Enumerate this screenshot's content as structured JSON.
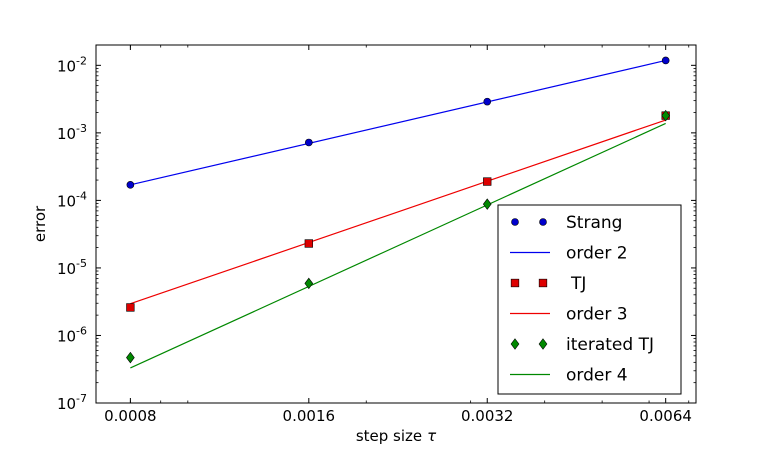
{
  "chart_data": {
    "type": "scatter",
    "title": "",
    "xlabel": "step size",
    "xlabel_symbol": "τ",
    "ylabel": "error",
    "x_scale": "log2",
    "y_scale": "log10",
    "xlim": [
      0.0007,
      0.0072
    ],
    "ylim": [
      1e-07,
      0.02
    ],
    "x_ticks": [
      {
        "value": 0.0008,
        "label": "0.0008"
      },
      {
        "value": 0.0016,
        "label": "0.0016"
      },
      {
        "value": 0.0032,
        "label": "0.0032"
      },
      {
        "value": 0.0064,
        "label": "0.0064"
      }
    ],
    "y_ticks": [
      {
        "exp": -7,
        "base": "10",
        "sup": "-7"
      },
      {
        "exp": -6,
        "base": "10",
        "sup": "-6"
      },
      {
        "exp": -5,
        "base": "10",
        "sup": "-5"
      },
      {
        "exp": -4,
        "base": "10",
        "sup": "-4"
      },
      {
        "exp": -3,
        "base": "10",
        "sup": "-3"
      },
      {
        "exp": -2,
        "base": "10",
        "sup": "-2"
      }
    ],
    "grid": false,
    "legend_position": "lower-right",
    "series": [
      {
        "name": "Strang",
        "kind": "markers",
        "marker": "circle",
        "color": "#0000cc",
        "x": [
          0.0008,
          0.0016,
          0.0032,
          0.0064
        ],
        "y": [
          0.00017,
          0.00072,
          0.0029,
          0.0118
        ]
      },
      {
        "name": "order 2",
        "kind": "line",
        "color": "#0000ee",
        "x": [
          0.0008,
          0.0064
        ],
        "y": [
          0.00017,
          0.0118
        ]
      },
      {
        "name": "TJ",
        "kind": "markers",
        "marker": "square",
        "color": "#dd0000",
        "x": [
          0.0008,
          0.0016,
          0.0032,
          0.0064
        ],
        "y": [
          2.6e-06,
          2.3e-05,
          0.00019,
          0.0018
        ]
      },
      {
        "name": "order 3",
        "kind": "line",
        "color": "#ee0000",
        "x": [
          0.0008,
          0.0064
        ],
        "y": [
          2.95e-06,
          0.00155
        ]
      },
      {
        "name": "iterated TJ",
        "kind": "markers",
        "marker": "diamond",
        "color": "#008800",
        "x": [
          0.0008,
          0.0016,
          0.0032,
          0.0064
        ],
        "y": [
          4.7e-07,
          5.9e-06,
          8.8e-05,
          0.0018
        ]
      },
      {
        "name": "order 4",
        "kind": "line",
        "color": "#008800",
        "x": [
          0.0008,
          0.0064
        ],
        "y": [
          3.3e-07,
          0.00138
        ]
      }
    ]
  }
}
